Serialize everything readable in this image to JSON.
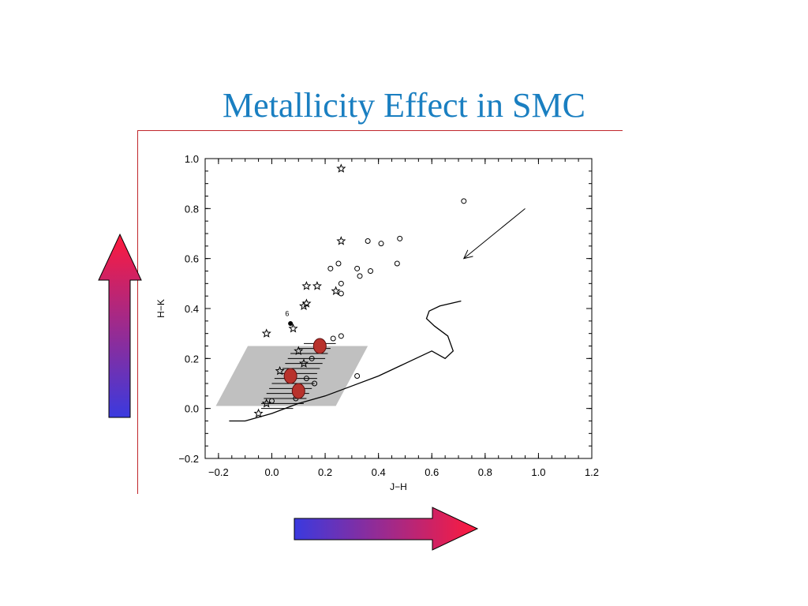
{
  "slide": {
    "title": "Metallicity Effect in SMC"
  },
  "colors": {
    "title": "#1a7fc1",
    "frame": "#c0262b",
    "arrow_start": "#3a3adf",
    "arrow_end": "#ff1a3c",
    "highlight_region": "#c0c0c0",
    "marker_fill": "#b8322c"
  },
  "arrows": [
    {
      "direction": "up",
      "meaning": "increasing H-K",
      "gradient": "blue-to-red"
    },
    {
      "direction": "right",
      "meaning": "increasing J-H",
      "gradient": "blue-to-red"
    }
  ],
  "chart_data": {
    "type": "scatter",
    "title": "",
    "xlabel": "J−H",
    "ylabel": "H−K",
    "xlim": [
      -0.25,
      1.2
    ],
    "ylim": [
      -0.2,
      1.0
    ],
    "xticks": [
      -0.2,
      0.0,
      0.2,
      0.4,
      0.6,
      0.8,
      1.0,
      1.2
    ],
    "yticks": [
      -0.2,
      0.0,
      0.2,
      0.4,
      0.6,
      0.8,
      1.0
    ],
    "xtick_labels": [
      "−0.2",
      "0.0",
      "0.2",
      "0.4",
      "0.6",
      "0.8",
      "1.0",
      "1.2"
    ],
    "ytick_labels": [
      "−0.2",
      "0.0",
      "0.2",
      "0.4",
      "0.6",
      "0.8",
      "1.0"
    ],
    "grid": false,
    "series": [
      {
        "marker": "open-star",
        "points": [
          [
            0.26,
            0.96
          ],
          [
            0.26,
            0.67
          ],
          [
            0.13,
            0.49
          ],
          [
            0.17,
            0.49
          ],
          [
            0.13,
            0.42
          ],
          [
            0.12,
            0.41
          ],
          [
            0.24,
            0.47
          ],
          [
            -0.02,
            0.3
          ],
          [
            0.08,
            0.32
          ],
          [
            0.1,
            0.23
          ],
          [
            0.03,
            0.15
          ],
          [
            0.12,
            0.18
          ],
          [
            -0.05,
            -0.02
          ],
          [
            -0.02,
            0.02
          ]
        ]
      },
      {
        "marker": "open-circle",
        "points": [
          [
            0.72,
            0.83
          ],
          [
            0.48,
            0.68
          ],
          [
            0.36,
            0.67
          ],
          [
            0.41,
            0.66
          ],
          [
            0.25,
            0.58
          ],
          [
            0.32,
            0.56
          ],
          [
            0.47,
            0.58
          ],
          [
            0.22,
            0.56
          ],
          [
            0.37,
            0.55
          ],
          [
            0.33,
            0.53
          ],
          [
            0.26,
            0.5
          ],
          [
            0.26,
            0.46
          ],
          [
            0.26,
            0.29
          ],
          [
            0.23,
            0.28
          ],
          [
            0.32,
            0.13
          ],
          [
            0.16,
            0.1
          ],
          [
            0.09,
            0.04
          ],
          [
            0.13,
            0.12
          ],
          [
            0.15,
            0.2
          ],
          [
            0.0,
            0.03
          ]
        ]
      },
      {
        "marker": "filled-dot",
        "points": [
          [
            0.07,
            0.34
          ]
        ]
      },
      {
        "name": "",
        "marker": "red-filled-circle",
        "points": [
          [
            0.18,
            0.25
          ],
          [
            0.07,
            0.13
          ],
          [
            0.1,
            0.07
          ]
        ]
      }
    ],
    "error_bars": [
      {
        "x": 0.18,
        "y": 0.26,
        "xerr": 0.06
      },
      {
        "x": 0.16,
        "y": 0.24,
        "xerr": 0.06
      },
      {
        "x": 0.14,
        "y": 0.22,
        "xerr": 0.07
      },
      {
        "x": 0.13,
        "y": 0.2,
        "xerr": 0.07
      },
      {
        "x": 0.12,
        "y": 0.18,
        "xerr": 0.07
      },
      {
        "x": 0.11,
        "y": 0.16,
        "xerr": 0.07
      },
      {
        "x": 0.1,
        "y": 0.14,
        "xerr": 0.07
      },
      {
        "x": 0.09,
        "y": 0.12,
        "xerr": 0.08
      },
      {
        "x": 0.08,
        "y": 0.1,
        "xerr": 0.08
      },
      {
        "x": 0.07,
        "y": 0.08,
        "xerr": 0.08
      },
      {
        "x": 0.06,
        "y": 0.06,
        "xerr": 0.08
      },
      {
        "x": 0.05,
        "y": 0.04,
        "xerr": 0.08
      },
      {
        "x": 0.04,
        "y": 0.02,
        "xerr": 0.08
      },
      {
        "x": 0.02,
        "y": 0.0,
        "xerr": 0.06
      }
    ],
    "curve": [
      [
        -0.16,
        -0.05
      ],
      [
        -0.1,
        -0.05
      ],
      [
        0.0,
        -0.02
      ],
      [
        0.1,
        0.02
      ],
      [
        0.2,
        0.05
      ],
      [
        0.3,
        0.09
      ],
      [
        0.4,
        0.13
      ],
      [
        0.5,
        0.18
      ],
      [
        0.6,
        0.23
      ],
      [
        0.65,
        0.2
      ],
      [
        0.68,
        0.23
      ],
      [
        0.66,
        0.29
      ],
      [
        0.61,
        0.33
      ],
      [
        0.58,
        0.36
      ],
      [
        0.59,
        0.39
      ],
      [
        0.63,
        0.41
      ],
      [
        0.71,
        0.43
      ]
    ],
    "reddening_vector": {
      "from": [
        0.95,
        0.8
      ],
      "to": [
        0.72,
        0.6
      ]
    },
    "highlight_region": [
      [
        -0.21,
        0.01
      ],
      [
        0.24,
        0.01
      ],
      [
        0.36,
        0.25
      ],
      [
        -0.09,
        0.25
      ]
    ],
    "annotations": [
      {
        "text": "6",
        "x": 0.05,
        "y": 0.37
      }
    ]
  }
}
